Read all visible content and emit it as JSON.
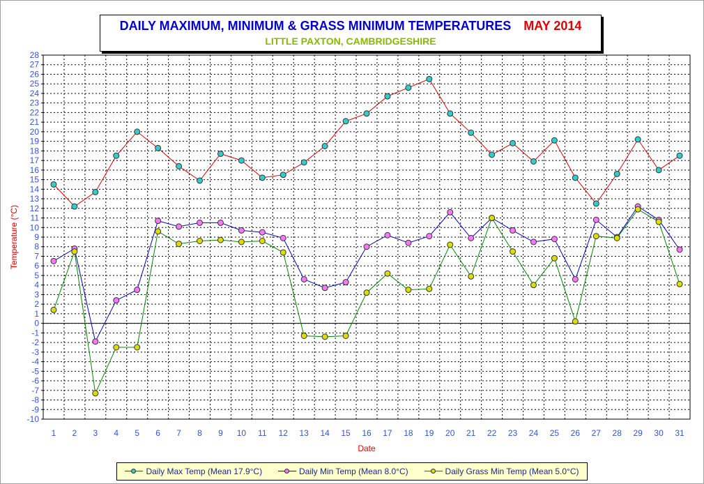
{
  "title": {
    "main": "DAILY MAXIMUM, MINIMUM & GRASS MINIMUM TEMPERATURES",
    "period": "MAY 2014",
    "subtitle": "LITTLE PAXTON, CAMBRIDGESHIRE"
  },
  "colors": {
    "title_main": "#0000cc",
    "title_period": "#e00000",
    "subtitle": "#88b800",
    "axis_label": "#e00000",
    "tick_label": "#3355cc"
  },
  "legend": [
    {
      "label": "Daily Max Temp (Mean 17.9°C)",
      "line": "#e00000",
      "marker": "#33cccc"
    },
    {
      "label": "Daily Min Temp (Mean 8.0°C)",
      "line": "#0000cc",
      "marker": "#ff77ff"
    },
    {
      "label": "Daily Grass Min Temp (Mean 5.0°C)",
      "line": "#008800",
      "marker": "#dddd00"
    }
  ],
  "chart_data": {
    "type": "line",
    "title": "DAILY MAXIMUM, MINIMUM & GRASS MINIMUM TEMPERATURES",
    "xlabel": "Date",
    "ylabel": "Temperature (°C)",
    "ylim": [
      -10,
      28
    ],
    "grid": true,
    "legend_position": "bottom",
    "x": [
      1,
      2,
      3,
      4,
      5,
      6,
      7,
      8,
      9,
      10,
      11,
      12,
      13,
      14,
      15,
      16,
      17,
      18,
      19,
      20,
      21,
      22,
      23,
      24,
      25,
      26,
      27,
      28,
      29,
      30,
      31
    ],
    "series": [
      {
        "name": "Daily Max Temp (Mean 17.9°C)",
        "color": "#e00000",
        "marker_color": "#33cccc",
        "values": [
          14.5,
          12.2,
          13.7,
          17.5,
          20.0,
          18.3,
          16.4,
          14.9,
          17.7,
          17.0,
          15.2,
          15.5,
          16.8,
          18.5,
          21.1,
          21.9,
          23.7,
          24.6,
          25.5,
          21.9,
          19.9,
          17.6,
          18.8,
          16.9,
          19.1,
          15.2,
          12.5,
          15.6,
          19.2,
          16.0,
          17.5
        ]
      },
      {
        "name": "Daily Min Temp (Mean 8.0°C)",
        "color": "#0000cc",
        "marker_color": "#ff77ff",
        "values": [
          6.5,
          7.8,
          -1.9,
          2.4,
          3.5,
          10.7,
          10.1,
          10.5,
          10.5,
          9.7,
          9.5,
          8.9,
          4.6,
          3.7,
          4.3,
          8.0,
          9.2,
          8.4,
          9.1,
          11.6,
          8.9,
          11.0,
          9.7,
          8.5,
          8.8,
          4.6,
          10.8,
          9.0,
          12.2,
          10.8,
          7.7
        ]
      },
      {
        "name": "Daily Grass Min Temp (Mean 5.0°C)",
        "color": "#008800",
        "marker_color": "#dddd00",
        "values": [
          1.4,
          7.5,
          -7.3,
          -2.5,
          -2.5,
          9.6,
          8.3,
          8.6,
          8.7,
          8.5,
          8.6,
          7.4,
          -1.3,
          -1.4,
          -1.3,
          3.2,
          5.2,
          3.5,
          3.6,
          8.2,
          4.9,
          11.0,
          7.5,
          4.0,
          6.8,
          0.2,
          9.1,
          8.9,
          11.9,
          10.6,
          4.1
        ]
      }
    ]
  }
}
